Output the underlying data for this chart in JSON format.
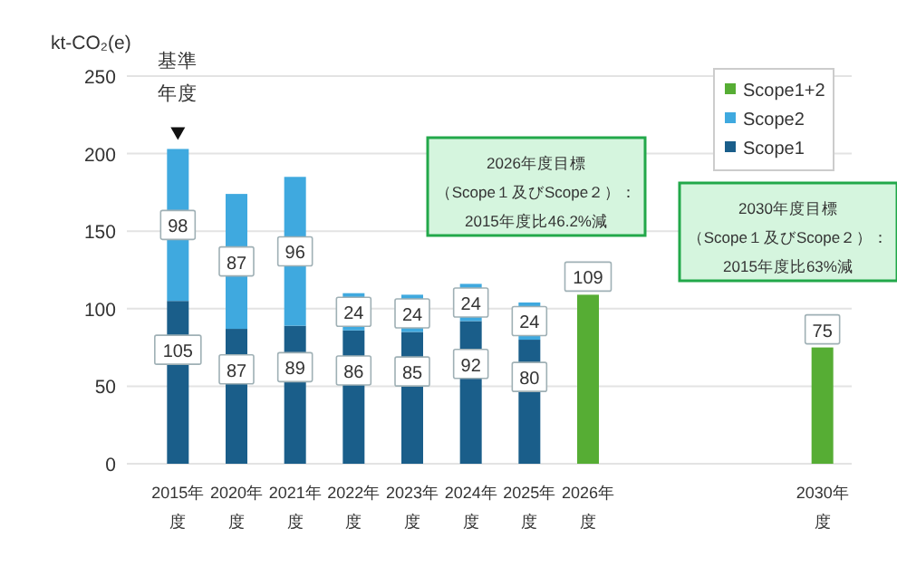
{
  "chart_data": {
    "type": "bar",
    "stacked": true,
    "ylabel": "kt-CO₂(e)",
    "categories": [
      "2015年度",
      "2020年度",
      "2021年度",
      "2022年度",
      "2023年度",
      "2024年度",
      "2025年度",
      "2026年度",
      null,
      null,
      null,
      "2030年度"
    ],
    "series": [
      {
        "name": "Scope1",
        "color": "#1a5e8a",
        "values": [
          105,
          87,
          89,
          86,
          85,
          92,
          80,
          null,
          null,
          null,
          null,
          null
        ]
      },
      {
        "name": "Scope2",
        "color": "#3fa9df",
        "values": [
          98,
          87,
          96,
          24,
          24,
          24,
          24,
          null,
          null,
          null,
          null,
          null
        ]
      },
      {
        "name": "Scope1+2",
        "color": "#56ad34",
        "values": [
          null,
          null,
          null,
          null,
          null,
          null,
          null,
          109,
          null,
          null,
          null,
          75
        ]
      }
    ],
    "ylim": [
      0,
      250
    ],
    "yticks": [
      0,
      50,
      100,
      150,
      200,
      250
    ],
    "grid": "y",
    "legend": "top right",
    "data_labels": true,
    "annotations": [
      {
        "text": "基準年度",
        "x": "2015年度",
        "y": 203
      },
      "2026年度目標（Scope１及びScope２）：2015年度比46.2%減",
      "2030年度目標（Scope１及びScope２）：2015年度比63%減"
    ]
  }
}
